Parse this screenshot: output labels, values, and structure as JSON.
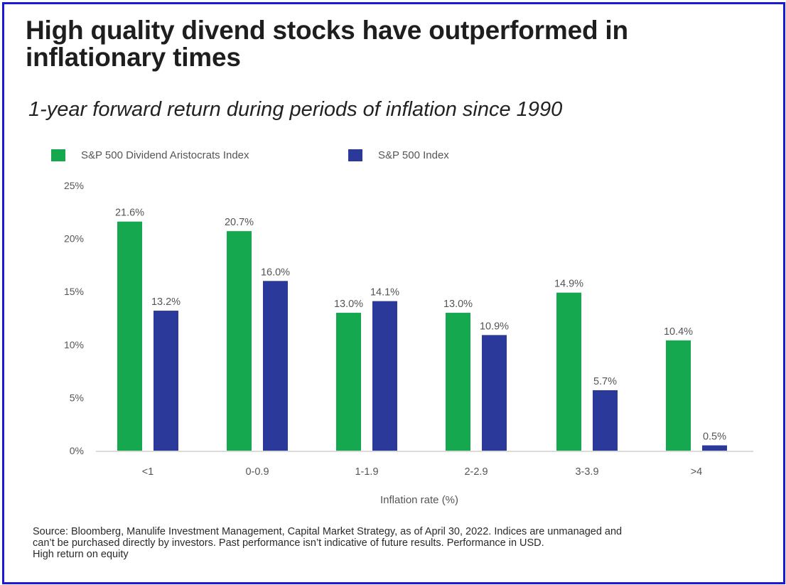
{
  "header": {
    "title": "High quality divend stocks have outperformed in inflationary times",
    "subtitle": "1-year forward return during periods of inflation since 1990"
  },
  "colors": {
    "green": "#16a84e",
    "blue": "#2b3a9a",
    "border": "#1a1ad6"
  },
  "chart_data": {
    "type": "bar",
    "title": "1-year forward return during periods of inflation since 1990",
    "xlabel": "Inflation rate (%)",
    "ylabel": "",
    "ylim": [
      0,
      25
    ],
    "yticks": [
      0,
      5,
      10,
      15,
      20,
      25
    ],
    "ytick_labels": [
      "0%",
      "5%",
      "10%",
      "15%",
      "20%",
      "25%"
    ],
    "grid": false,
    "legend_position": "top-left",
    "categories": [
      "<1",
      "0-0.9",
      "1-1.9",
      "2-2.9",
      "3-3.9",
      ">4"
    ],
    "series": [
      {
        "name": "S&P 500 Dividend Aristocrats Index",
        "color": "#16a84e",
        "values": [
          21.6,
          20.7,
          13.0,
          13.0,
          14.9,
          10.4
        ],
        "labels": [
          "21.6%",
          "20.7%",
          "13.0%",
          "13.0%",
          "14.9%",
          "10.4%"
        ]
      },
      {
        "name": "S&P 500 Index",
        "color": "#2b3a9a",
        "values": [
          13.2,
          16.0,
          14.1,
          10.9,
          5.7,
          0.5
        ],
        "labels": [
          "13.2%",
          "16.0%",
          "14.1%",
          "10.9%",
          "5.7%",
          "0.5%"
        ]
      }
    ]
  },
  "footer": {
    "lines": [
      "Source: Bloomberg, Manulife Investment Management, Capital Market Strategy, as of April 30, 2022. Indices are unmanaged and",
      "can’t be purchased directly by investors. Past performance isn’t indicative of future results. Performance in USD.",
      "High return on equity"
    ]
  }
}
